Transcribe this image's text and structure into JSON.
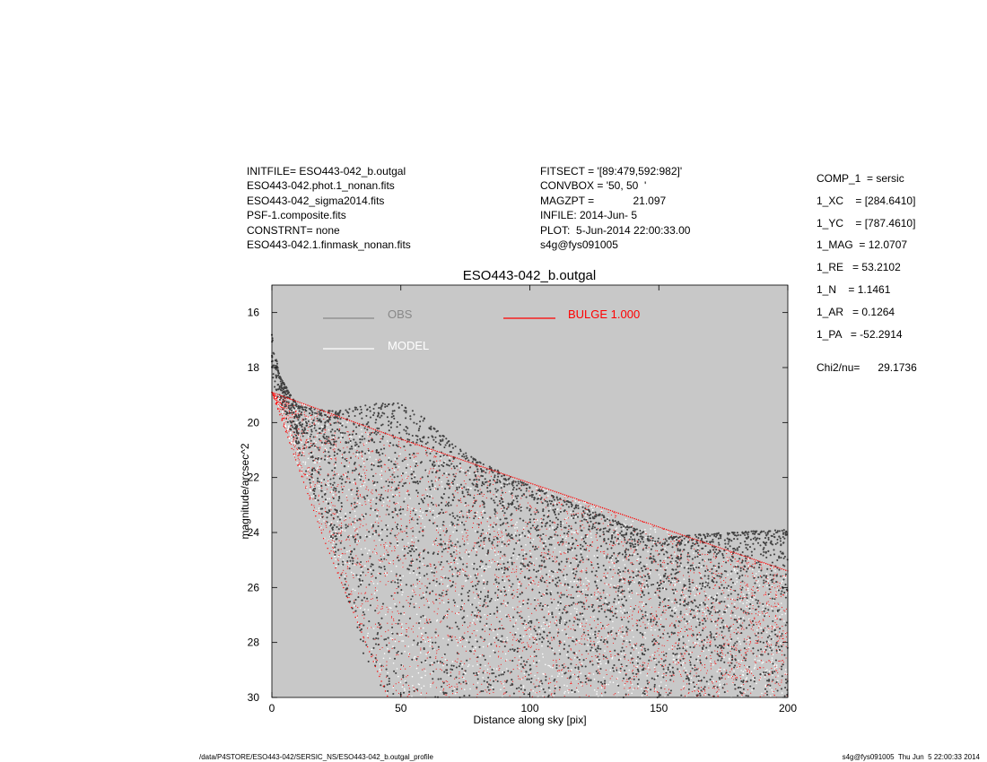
{
  "header_left": [
    "INITFILE= ESO443-042_b.outgal",
    "ESO443-042.phot.1_nonan.fits",
    "ESO443-042_sigma2014.fits",
    "PSF-1.composite.fits",
    "CONSTRNT= none",
    "ESO443-042.1.finmask_nonan.fits"
  ],
  "header_mid": [
    "FITSECT = '[89:479,592:982]'",
    "CONVBOX = '50, 50  '",
    "MAGZPT =             21.097",
    "INFILE: 2014-Jun- 5",
    "PLOT:  5-Jun-2014 22:00:33.00",
    "s4g@fys091005"
  ],
  "params": [
    {
      "label": "COMP_1",
      "value": "= sersic"
    },
    {
      "label": "1_XC",
      "value": "= [284.6410]"
    },
    {
      "label": "1_YC",
      "value": "= [787.4610]"
    },
    {
      "label": "1_MAG",
      "value": "= 12.0707"
    },
    {
      "label": "1_RE",
      "value": "= 53.2102"
    },
    {
      "label": "1_N",
      "value": "= 1.1461"
    },
    {
      "label": "1_AR",
      "value": "= 0.1264"
    },
    {
      "label": "1_PA",
      "value": "= -52.2914"
    }
  ],
  "chi2": {
    "label": "Chi2/nu=",
    "value": "29.1736"
  },
  "footer_left": "/data/P4STORE/ESO443-042/SERSIC_NS/ESO443-042_b.outgal_profile",
  "footer_right": "s4g@fys091005  Thu Jun  5 22:00:33 2014",
  "chart_data": {
    "type": "scatter",
    "title": "ESO443-042_b.outgal",
    "xlabel": "Distance along sky [pix]",
    "ylabel": "magnitude/arcsec^2",
    "xlim": [
      0,
      200
    ],
    "ylim": [
      30,
      15
    ],
    "y_inverted": true,
    "x_ticks": [
      0,
      50,
      100,
      150,
      200
    ],
    "y_ticks": [
      16,
      18,
      20,
      22,
      24,
      26,
      28,
      30
    ],
    "background_color": "#c8c8c8",
    "legend": [
      {
        "label": "OBS",
        "color": "#888888"
      },
      {
        "label": "MODEL",
        "color": "#ffffff"
      },
      {
        "label": "BULGE  1.000",
        "color": "#ff0000"
      }
    ],
    "series": [
      {
        "label": "OBS",
        "color": "#404040",
        "upper_envelope": {
          "x": [
            0,
            3,
            10,
            25,
            40,
            50,
            60,
            70,
            80,
            100,
            150,
            175,
            200
          ],
          "y": [
            16.8,
            18.3,
            19.4,
            19.6,
            19.3,
            19.3,
            19.9,
            20.8,
            21.4,
            22.3,
            24.2,
            24.0,
            23.9
          ]
        },
        "lower_envelope": {
          "x": [
            0,
            10,
            25,
            35,
            45,
            50,
            100,
            150,
            200
          ],
          "y": [
            18.5,
            21.0,
            25.0,
            28.5,
            30.0,
            30.0,
            30.0,
            30.0,
            30.0
          ]
        }
      },
      {
        "label": "MODEL",
        "color": "#ffffff",
        "upper_envelope": {
          "x": [
            0,
            50,
            100,
            150,
            200
          ],
          "y": [
            18.9,
            20.6,
            22.2,
            23.8,
            25.4
          ]
        },
        "lower_envelope": {
          "x": [
            0,
            20,
            45,
            48,
            200
          ],
          "y": [
            18.9,
            24.2,
            30.0,
            30.0,
            30.0
          ]
        }
      },
      {
        "label": "BULGE  1.000",
        "color": "#ff0000",
        "upper_envelope": {
          "x": [
            0,
            50,
            100,
            150,
            200
          ],
          "y": [
            18.9,
            20.6,
            22.2,
            23.8,
            25.4
          ]
        },
        "lower_envelope": {
          "x": [
            0,
            20,
            45,
            48,
            200
          ],
          "y": [
            18.9,
            24.2,
            30.0,
            30.0,
            30.0
          ]
        }
      }
    ]
  }
}
